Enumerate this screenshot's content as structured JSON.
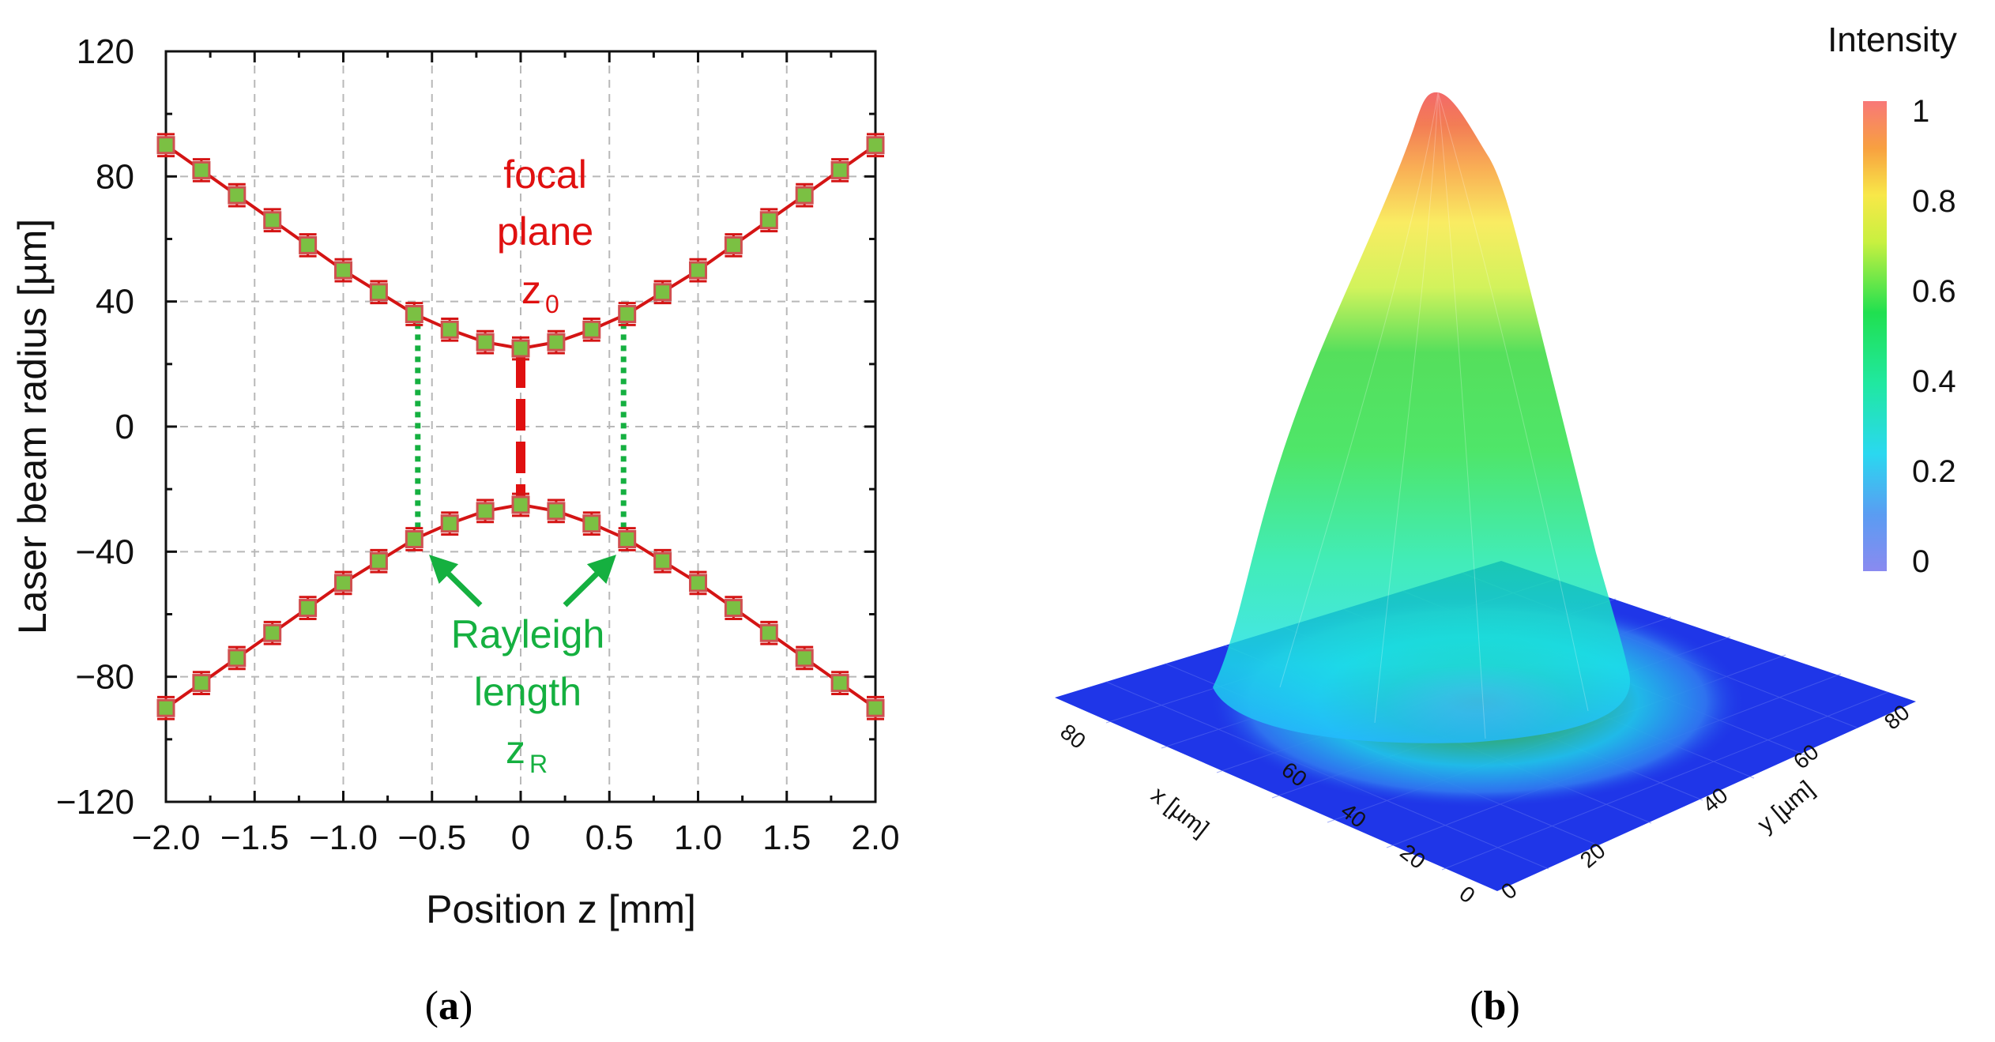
{
  "chart_data": [
    {
      "panel": "(a)",
      "type": "line",
      "xlabel": "Position z [mm]",
      "ylabel": "Laser beam radius [µm]",
      "xlim": [
        -2.0,
        2.0
      ],
      "ylim": [
        -120,
        120
      ],
      "xticks": [
        "−2.0",
        "−1.5",
        "−1.0",
        "−0.5",
        "0",
        "0.5",
        "1.0",
        "1.5",
        "2.0"
      ],
      "xtick_values": [
        -2.0,
        -1.5,
        -1.0,
        -0.5,
        0,
        0.5,
        1.0,
        1.5,
        2.0
      ],
      "yticks": [
        "120",
        "80",
        "40",
        "0",
        "−40",
        "−80",
        "−120"
      ],
      "ytick_values": [
        120,
        80,
        40,
        0,
        -40,
        -80,
        -120
      ],
      "grid": true,
      "x": [
        -2.0,
        -1.8,
        -1.6,
        -1.4,
        -1.2,
        -1.0,
        -0.8,
        -0.6,
        -0.4,
        -0.2,
        0.0,
        0.2,
        0.4,
        0.6,
        0.8,
        1.0,
        1.2,
        1.4,
        1.6,
        1.8,
        2.0
      ],
      "series": [
        {
          "name": "upper radius",
          "values": [
            90,
            82,
            74,
            66,
            58,
            50,
            43,
            36,
            31,
            27,
            25,
            27,
            31,
            36,
            43,
            50,
            58,
            66,
            74,
            82,
            90
          ],
          "error": 3.5
        },
        {
          "name": "lower radius",
          "values": [
            -90,
            -82,
            -74,
            -66,
            -58,
            -50,
            -43,
            -36,
            -31,
            -27,
            -25,
            -27,
            -31,
            -36,
            -43,
            -50,
            -58,
            -66,
            -74,
            -82,
            -90
          ],
          "error": 3.5
        }
      ],
      "focal_marker": {
        "z": 0,
        "from": 25,
        "to": -25
      },
      "rayleigh_markers": [
        {
          "z": -0.58,
          "from": 33,
          "to": -33
        },
        {
          "z": 0.58,
          "from": 33,
          "to": -33
        }
      ],
      "annotations": {
        "focal_1": "focal",
        "focal_2": "plane",
        "focal_sym": "z",
        "focal_sub": "0",
        "rayleigh_1": "Rayleigh",
        "rayleigh_2": "length",
        "rayleigh_sym": "z",
        "rayleigh_sub": "R"
      }
    },
    {
      "panel": "(b)",
      "type": "surface3d",
      "xlabel": "x [µm]",
      "ylabel": "y [µm]",
      "x_ticks": [
        "0",
        "20",
        "40",
        "60",
        "80"
      ],
      "y_ticks": [
        "0",
        "20",
        "40",
        "60",
        "80"
      ],
      "colorbar_title": "Intensity",
      "colorbar_ticks": [
        "1",
        "0.8",
        "0.6",
        "0.4",
        "0.2",
        "0"
      ],
      "colorbar_values": [
        1,
        0.8,
        0.6,
        0.4,
        0.2,
        0
      ],
      "peak_intensity": 1
    }
  ],
  "captions": {
    "a_open": "(",
    "a_letter": "a",
    "a_close": ")",
    "b_open": "(",
    "b_letter": "b",
    "b_close": ")"
  },
  "colors": {
    "line": "#d41414",
    "marker": "#7bc043",
    "focal": "#e01010",
    "rayleigh": "#15b040",
    "floor": "#1f36e8"
  }
}
